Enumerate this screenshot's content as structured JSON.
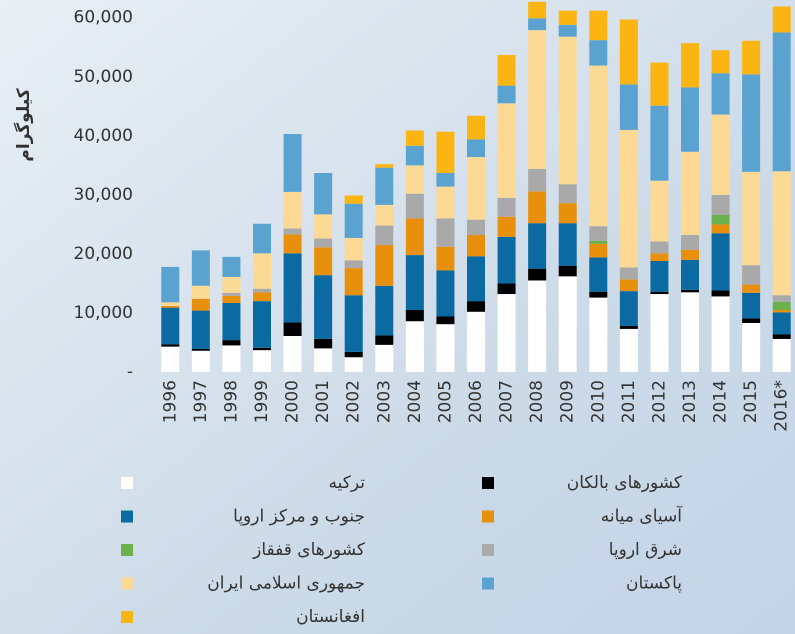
{
  "chart_data": {
    "type": "bar",
    "stacked": true,
    "y_label": "کیلوگرام",
    "categories": [
      "1996",
      "1997",
      "1998",
      "1999",
      "2000",
      "2001",
      "2002",
      "2003",
      "2004",
      "2005",
      "2006",
      "2007",
      "2008",
      "2009",
      "2010",
      "2011",
      "2012",
      "2013",
      "2014",
      "2015",
      "2016*"
    ],
    "ylim": [
      0,
      63000
    ],
    "yticks": [
      {
        "value": 0,
        "label": "-"
      },
      {
        "value": 10000,
        "label": "10,000"
      },
      {
        "value": 20000,
        "label": "20,000"
      },
      {
        "value": 30000,
        "label": "30,000"
      },
      {
        "value": 40000,
        "label": "40,000"
      },
      {
        "value": 50000,
        "label": "50,000"
      },
      {
        "value": 60000,
        "label": "60,000"
      }
    ],
    "grid": false,
    "series": [
      {
        "name": "ترکیه",
        "color": "#ffffff",
        "values": [
          4300,
          3600,
          4500,
          3700,
          6100,
          4000,
          2500,
          4600,
          8600,
          8100,
          10200,
          13200,
          15500,
          16200,
          12600,
          7300,
          13200,
          13500,
          12800,
          8300,
          5600
        ]
      },
      {
        "name": "کشورهای بالکان",
        "color": "#000000",
        "values": [
          400,
          300,
          900,
          400,
          2300,
          1600,
          900,
          1600,
          1900,
          1300,
          1800,
          1800,
          2000,
          1800,
          1000,
          500,
          400,
          400,
          1000,
          800,
          800
        ]
      },
      {
        "name": "جنوب و مرکز اروپا",
        "color": "#0b6aa2",
        "values": [
          6200,
          6500,
          6300,
          7900,
          11700,
          10800,
          9600,
          8400,
          9300,
          7800,
          7600,
          7900,
          7700,
          7200,
          5800,
          5900,
          5200,
          5100,
          9700,
          4300,
          3700
        ]
      },
      {
        "name": "آسیای میانه",
        "color": "#e8900c",
        "values": [
          300,
          2000,
          1200,
          1500,
          3200,
          4700,
          4600,
          6900,
          6200,
          4000,
          3600,
          3400,
          5400,
          3400,
          2300,
          2000,
          1300,
          1700,
          1500,
          1400,
          400
        ]
      },
      {
        "name": "کشورهای قفقاز",
        "color": "#6ab04c",
        "values": [
          0,
          0,
          0,
          0,
          0,
          0,
          0,
          0,
          0,
          0,
          0,
          0,
          0,
          0,
          500,
          0,
          0,
          0,
          1600,
          0,
          1400
        ]
      },
      {
        "name": "شرق اروپا",
        "color": "#a9a9a9",
        "values": [
          0,
          0,
          500,
          600,
          1000,
          1500,
          1300,
          3300,
          4200,
          4800,
          2600,
          3200,
          3800,
          3200,
          2500,
          2000,
          2000,
          2500,
          3400,
          3300,
          1100
        ]
      },
      {
        "name": "جمهوری اسلامی ایران",
        "color": "#fcd995",
        "values": [
          600,
          2200,
          2700,
          6000,
          6200,
          4100,
          3800,
          3500,
          4800,
          5400,
          10600,
          16000,
          23500,
          25000,
          27200,
          23300,
          10300,
          14100,
          13600,
          15800,
          21000
        ]
      },
      {
        "name": "پاکستان",
        "color": "#5aa3d0",
        "values": [
          6000,
          6000,
          3400,
          5000,
          9800,
          7000,
          5800,
          6300,
          3300,
          2300,
          3000,
          3000,
          2000,
          2000,
          4300,
          7700,
          12700,
          10900,
          7000,
          16500,
          23500
        ]
      },
      {
        "name": "افغانستان",
        "color": "#fbb512",
        "values": [
          0,
          0,
          0,
          0,
          0,
          0,
          1400,
          600,
          2600,
          7000,
          4000,
          5200,
          2800,
          2400,
          5000,
          11000,
          7300,
          7500,
          3900,
          5700,
          4400
        ]
      }
    ]
  }
}
